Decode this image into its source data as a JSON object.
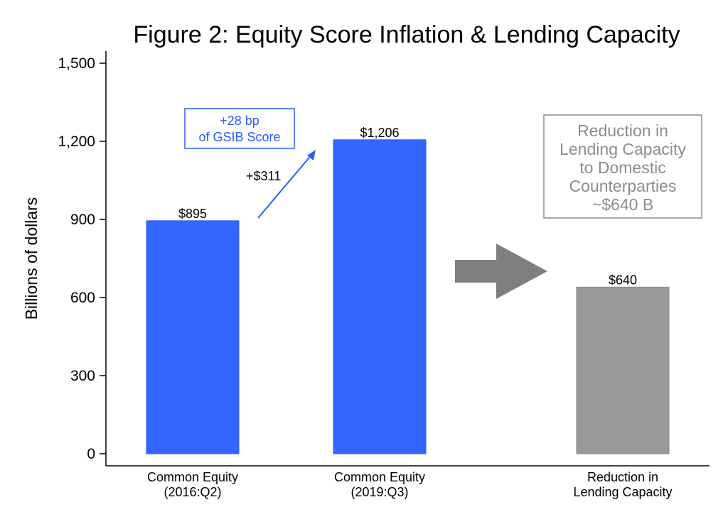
{
  "chart_data": {
    "type": "bar",
    "title": "Figure 2: Equity Score Inflation & Lending Capacity",
    "ylabel": "Billions of dollars",
    "xlabel": "",
    "ylim": [
      0,
      1500
    ],
    "yticks": [
      "0",
      "300",
      "600",
      "900",
      "1,200",
      "1,500"
    ],
    "ytick_values": [
      0,
      300,
      600,
      900,
      1200,
      1500
    ],
    "grid": false,
    "categories": [
      [
        "Common Equity",
        "(2016:Q2)"
      ],
      [
        "Common Equity",
        "(2019:Q3)"
      ],
      [
        "Reduction in",
        "Lending Capacity"
      ]
    ],
    "values": [
      895,
      1206,
      640
    ],
    "value_labels": [
      "$895",
      "$1,206",
      "$640"
    ],
    "bar_colors": [
      "#3366ff",
      "#3366ff",
      "#999999"
    ],
    "annotations": {
      "increase_label": "+$311",
      "score_box": [
        "+28 bp",
        "of GSIB Score"
      ],
      "reduction_box": [
        "Reduction in",
        "Lending Capacity",
        "to Domestic",
        "Counterparties",
        "~$640 B"
      ]
    }
  },
  "colors": {
    "blue": "#3366ff",
    "blue_text": "#2a5cff",
    "gray_bar": "#999999",
    "gray_text": "#8c8c8c",
    "arrow": "#7f7f7f"
  }
}
